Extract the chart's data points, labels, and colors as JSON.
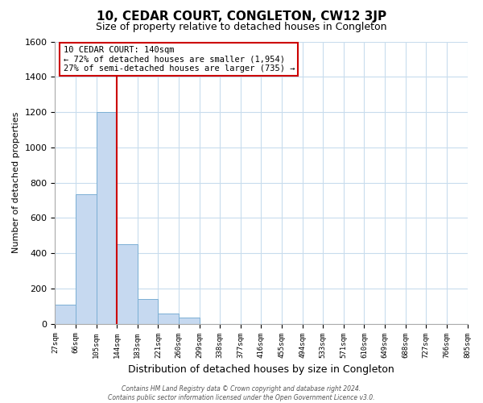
{
  "title": "10, CEDAR COURT, CONGLETON, CW12 3JP",
  "subtitle": "Size of property relative to detached houses in Congleton",
  "xlabel": "Distribution of detached houses by size in Congleton",
  "ylabel": "Number of detached properties",
  "bar_values": [
    110,
    735,
    1200,
    450,
    140,
    60,
    35,
    0,
    0,
    0,
    0,
    0,
    0,
    0,
    0,
    0,
    0,
    0,
    0,
    0
  ],
  "tick_labels": [
    "27sqm",
    "66sqm",
    "105sqm",
    "144sqm",
    "183sqm",
    "221sqm",
    "260sqm",
    "299sqm",
    "338sqm",
    "377sqm",
    "416sqm",
    "455sqm",
    "494sqm",
    "533sqm",
    "571sqm",
    "610sqm",
    "649sqm",
    "688sqm",
    "727sqm",
    "766sqm",
    "805sqm"
  ],
  "bar_color": "#c6d9f0",
  "bar_edge_color": "#7bafd4",
  "vline_x": 3,
  "vline_color": "#cc0000",
  "ylim": [
    0,
    1600
  ],
  "yticks": [
    0,
    200,
    400,
    600,
    800,
    1000,
    1200,
    1400,
    1600
  ],
  "annotation_title": "10 CEDAR COURT: 140sqm",
  "annotation_line1": "← 72% of detached houses are smaller (1,954)",
  "annotation_line2": "27% of semi-detached houses are larger (735) →",
  "footer_line1": "Contains HM Land Registry data © Crown copyright and database right 2024.",
  "footer_line2": "Contains public sector information licensed under the Open Government Licence v3.0.",
  "background_color": "#ffffff",
  "grid_color": "#c8dced"
}
